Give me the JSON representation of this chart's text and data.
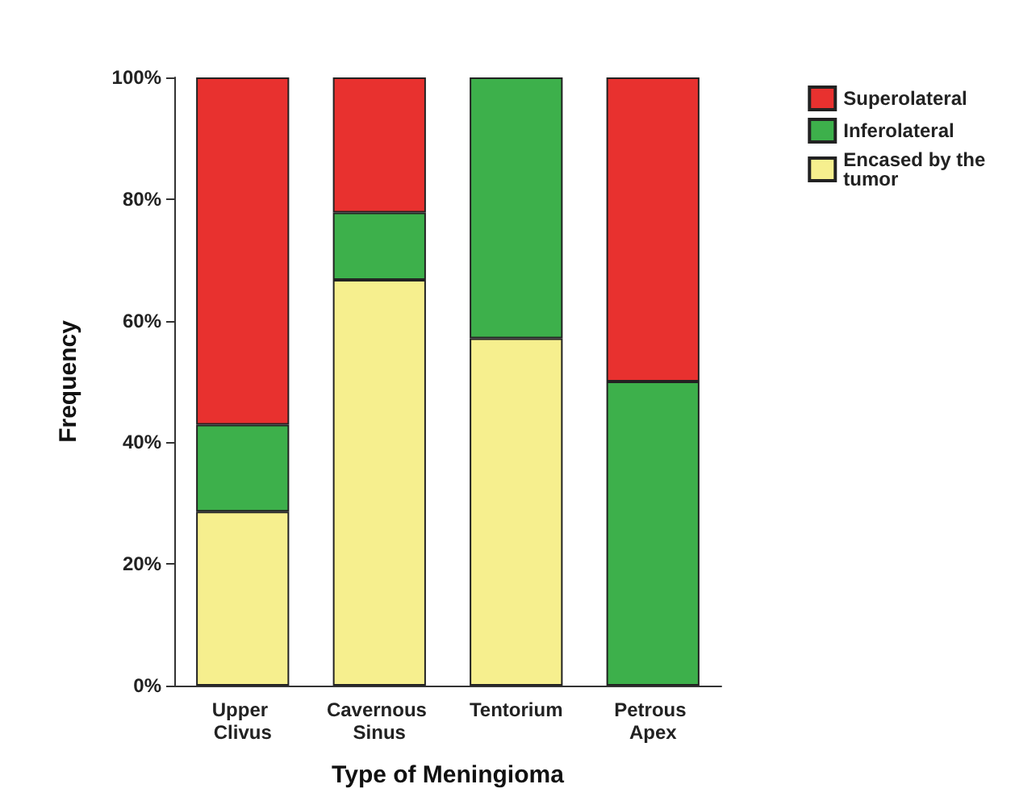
{
  "chart_data": {
    "type": "bar",
    "stacked": true,
    "xlabel": "Type of Meningioma",
    "ylabel": "Frequency",
    "categories": [
      "Upper Clivus",
      "Cavernous Sinus",
      "Tentorium",
      "Petrous Apex"
    ],
    "series": [
      {
        "name": "Encased by the tumor",
        "color": "#f6ef8e",
        "values": [
          28.6,
          66.7,
          57.1,
          0
        ]
      },
      {
        "name": "Inferolateral",
        "color": "#3db04b",
        "values": [
          14.3,
          11.1,
          42.9,
          50
        ]
      },
      {
        "name": "Superolateral",
        "color": "#e8312f",
        "values": [
          57.1,
          22.2,
          0,
          50
        ]
      }
    ],
    "ylim": [
      0,
      100
    ],
    "yticks": [
      {
        "value": 0,
        "label": "0%"
      },
      {
        "value": 20,
        "label": "20%"
      },
      {
        "value": 40,
        "label": "40%"
      },
      {
        "value": 60,
        "label": "60%"
      },
      {
        "value": 80,
        "label": "80%"
      },
      {
        "value": 100,
        "label": "100%"
      }
    ],
    "grid": false,
    "legend": "top right"
  }
}
